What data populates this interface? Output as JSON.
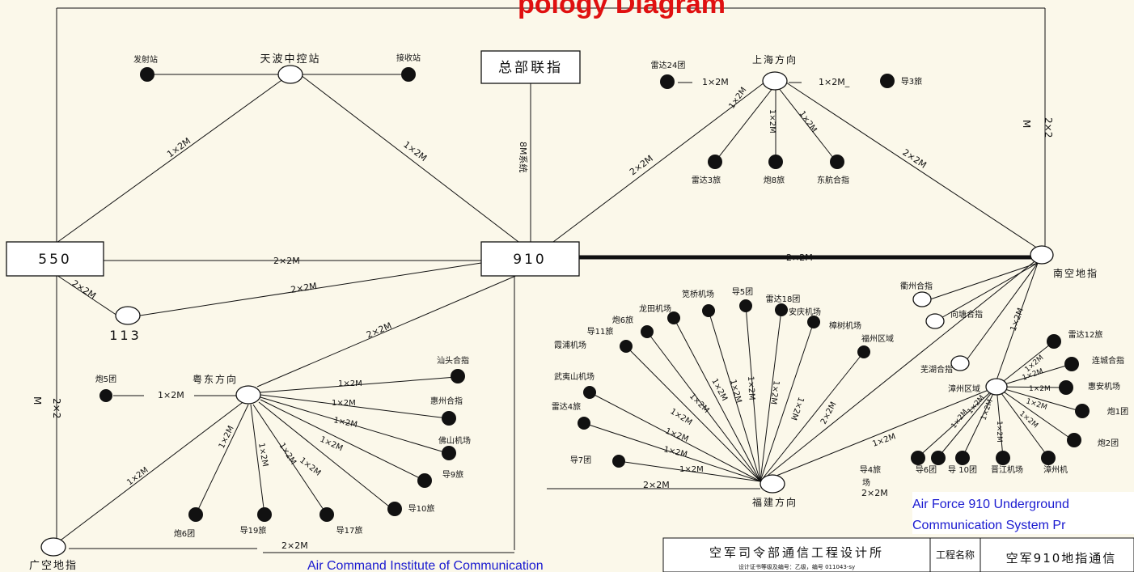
{
  "title_fragment": "pology Diagram",
  "nodes": {
    "n550": "550",
    "n910": "910",
    "n113": "113",
    "hq": "总部联指",
    "tianbo": "天波中控站",
    "fashe": "发射站",
    "jieshou": "接收站",
    "shanghai": "上海方向",
    "leida24": "雷达24团",
    "dao3": "导3旅",
    "leida3": "雷达3旅",
    "pao8": "炮8旅",
    "donghang": "东航合指",
    "nankong": "南空地指",
    "guangkong": "广空地指",
    "yuedong": "粤东方向",
    "pao5": "炮5团",
    "shantou": "汕头合指",
    "huizhou": "惠州合指",
    "foshan": "佛山机场",
    "dao9": "导9旅",
    "dao10": "导10旅",
    "dao17": "导17旅",
    "dao19": "导19旅",
    "pao6t": "炮6团",
    "fujian": "福建方向",
    "dao7": "导7团",
    "leida4": "雷达4旅",
    "wuyishan": "武夷山机场",
    "xiapu": "霞浦机场",
    "dao11": "导11旅",
    "pao6l": "炮6旅",
    "longtian": "龙田机场",
    "juqiao": "笕桥机场",
    "dao5": "导5团",
    "leida18": "雷达18团",
    "anqing": "安庆机场",
    "zhangshu": "樟树机场",
    "fuzhouqu": "福州区域",
    "quzhou": "衢州合指",
    "xiangtang": "向塘合指",
    "wuhu": "芜湖合指",
    "zhangzhouqu": "漳州区域",
    "leida12": "雷达12旅",
    "liancheng": "连城合指",
    "huian": "惠安机场",
    "pao1": "炮1团",
    "pao2": "炮2团",
    "dao4": "导4旅",
    "dao6t": "导6团",
    "dao10t": "导 10团",
    "jinjiang": "晋江机场",
    "zhangzhouji": "漳州机"
  },
  "links": {
    "l1x2M": "1×2M",
    "l2x2M": "2×2M",
    "l8M": "8M系统",
    "r1x2M": "1×2M",
    "r1x2M_": "1×2M_",
    "m22": "2×2",
    "m2": "M",
    "zhang": "场"
  },
  "title_block": {
    "org": "空军司令部通信工程设计所",
    "cert": "设计证书等级及编号：乙级，编号 011043-sy",
    "label": "工程名称",
    "project": "空军910地指通信"
  },
  "captions": {
    "right": [
      "Air Force 910 Underground",
      "Communication System Pr"
    ],
    "bottom": "Air Command Institute of Communication"
  },
  "colors": {
    "title": "#e01010",
    "caption": "#1a1ad0"
  }
}
